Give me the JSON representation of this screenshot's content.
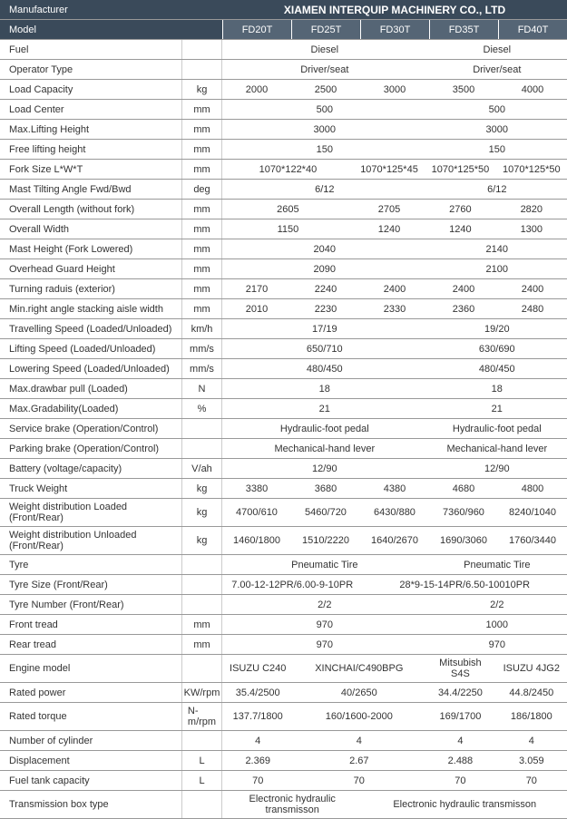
{
  "header": {
    "manufacturer_label": "Manufacturer",
    "manufacturer_value": "XIAMEN INTERQUIP MACHINERY CO., LTD",
    "model_label": "Model",
    "models": [
      "FD20T",
      "FD25T",
      "FD30T",
      "FD35T",
      "FD40T"
    ]
  },
  "rows": [
    {
      "label": "Fuel",
      "unit": "",
      "cells": [
        {
          "span": 3,
          "v": "Diesel"
        },
        {
          "span": 2,
          "v": "Diesel"
        }
      ]
    },
    {
      "label": "Operator Type",
      "unit": "",
      "cells": [
        {
          "span": 3,
          "v": "Driver/seat"
        },
        {
          "span": 2,
          "v": "Driver/seat"
        }
      ]
    },
    {
      "label": "Load Capacity",
      "unit": "kg",
      "cells": [
        {
          "span": 1,
          "v": "2000"
        },
        {
          "span": 1,
          "v": "2500"
        },
        {
          "span": 1,
          "v": "3000"
        },
        {
          "span": 1,
          "v": "3500"
        },
        {
          "span": 1,
          "v": "4000"
        }
      ]
    },
    {
      "label": "Load Center",
      "unit": "mm",
      "cells": [
        {
          "span": 3,
          "v": "500"
        },
        {
          "span": 2,
          "v": "500"
        }
      ]
    },
    {
      "label": "Max.Lifting Height",
      "unit": "mm",
      "cells": [
        {
          "span": 3,
          "v": "3000"
        },
        {
          "span": 2,
          "v": "3000"
        }
      ]
    },
    {
      "label": "Free lifting height",
      "unit": "mm",
      "cells": [
        {
          "span": 3,
          "v": "150"
        },
        {
          "span": 2,
          "v": "150"
        }
      ]
    },
    {
      "label": "Fork Size  L*W*T",
      "unit": "mm",
      "cells": [
        {
          "span": 2,
          "v": "1070*122*40"
        },
        {
          "span": 1,
          "v": "1070*125*45"
        },
        {
          "span": 1,
          "v": "1070*125*50"
        },
        {
          "span": 1,
          "v": "1070*125*50"
        }
      ]
    },
    {
      "label": "Mast Tilting Angle  Fwd/Bwd",
      "unit": "deg",
      "cells": [
        {
          "span": 3,
          "v": "6/12"
        },
        {
          "span": 2,
          "v": "6/12"
        }
      ]
    },
    {
      "label": "Overall Length (without fork)",
      "unit": "mm",
      "cells": [
        {
          "span": 2,
          "v": "2605"
        },
        {
          "span": 1,
          "v": "2705"
        },
        {
          "span": 1,
          "v": "2760"
        },
        {
          "span": 1,
          "v": "2820"
        }
      ]
    },
    {
      "label": "Overall Width",
      "unit": "mm",
      "cells": [
        {
          "span": 2,
          "v": "1150"
        },
        {
          "span": 1,
          "v": "1240"
        },
        {
          "span": 1,
          "v": "1240"
        },
        {
          "span": 1,
          "v": "1300"
        }
      ]
    },
    {
      "label": "Mast Height (Fork Lowered)",
      "unit": "mm",
      "cells": [
        {
          "span": 3,
          "v": "2040"
        },
        {
          "span": 2,
          "v": "2140"
        }
      ]
    },
    {
      "label": "Overhead Guard Height",
      "unit": "mm",
      "cells": [
        {
          "span": 3,
          "v": "2090"
        },
        {
          "span": 2,
          "v": "2100"
        }
      ]
    },
    {
      "label": "Turning raduis (exterior)",
      "unit": "mm",
      "cells": [
        {
          "span": 1,
          "v": "2170"
        },
        {
          "span": 1,
          "v": "2240"
        },
        {
          "span": 1,
          "v": "2400"
        },
        {
          "span": 1,
          "v": "2400"
        },
        {
          "span": 1,
          "v": "2400"
        }
      ]
    },
    {
      "label": "Min.right angle stacking aisle width",
      "unit": "mm",
      "cells": [
        {
          "span": 1,
          "v": "2010"
        },
        {
          "span": 1,
          "v": "2230"
        },
        {
          "span": 1,
          "v": "2330"
        },
        {
          "span": 1,
          "v": "2360"
        },
        {
          "span": 1,
          "v": "2480"
        }
      ]
    },
    {
      "label": "Travelling Speed (Loaded/Unloaded)",
      "unit": "km/h",
      "cells": [
        {
          "span": 3,
          "v": "17/19"
        },
        {
          "span": 2,
          "v": "19/20"
        }
      ]
    },
    {
      "label": "Lifting Speed (Loaded/Unloaded)",
      "unit": "mm/s",
      "cells": [
        {
          "span": 3,
          "v": "650/710"
        },
        {
          "span": 2,
          "v": "630/690"
        }
      ]
    },
    {
      "label": "Lowering Speed (Loaded/Unloaded)",
      "unit": "mm/s",
      "cells": [
        {
          "span": 3,
          "v": "480/450"
        },
        {
          "span": 2,
          "v": "480/450"
        }
      ]
    },
    {
      "label": "Max.drawbar pull (Loaded)",
      "unit": "N",
      "cells": [
        {
          "span": 3,
          "v": "18"
        },
        {
          "span": 2,
          "v": "18"
        }
      ]
    },
    {
      "label": "Max.Gradability(Loaded)",
      "unit": "%",
      "cells": [
        {
          "span": 3,
          "v": "21"
        },
        {
          "span": 2,
          "v": "21"
        }
      ]
    },
    {
      "label": "Service brake (Operation/Control)",
      "unit": "",
      "cells": [
        {
          "span": 3,
          "v": "Hydraulic-foot pedal"
        },
        {
          "span": 2,
          "v": "Hydraulic-foot pedal"
        }
      ]
    },
    {
      "label": "Parking brake (Operation/Control)",
      "unit": "",
      "cells": [
        {
          "span": 3,
          "v": "Mechanical-hand lever"
        },
        {
          "span": 2,
          "v": "Mechanical-hand lever"
        }
      ]
    },
    {
      "label": "Battery (voltage/capacity)",
      "unit": "V/ah",
      "cells": [
        {
          "span": 3,
          "v": "12/90"
        },
        {
          "span": 2,
          "v": "12/90"
        }
      ]
    },
    {
      "label": "Truck Weight",
      "unit": "kg",
      "cells": [
        {
          "span": 1,
          "v": "3380"
        },
        {
          "span": 1,
          "v": "3680"
        },
        {
          "span": 1,
          "v": "4380"
        },
        {
          "span": 1,
          "v": "4680"
        },
        {
          "span": 1,
          "v": "4800"
        }
      ]
    },
    {
      "label": "Weight distribution Loaded (Front/Rear)",
      "unit": "kg",
      "cells": [
        {
          "span": 1,
          "v": "4700/610"
        },
        {
          "span": 1,
          "v": "5460/720"
        },
        {
          "span": 1,
          "v": "6430/880"
        },
        {
          "span": 1,
          "v": "7360/960"
        },
        {
          "span": 1,
          "v": "8240/1040"
        }
      ]
    },
    {
      "label": "Weight distribution Unloaded (Front/Rear)",
      "unit": "kg",
      "cells": [
        {
          "span": 1,
          "v": "1460/1800"
        },
        {
          "span": 1,
          "v": "1510/2220"
        },
        {
          "span": 1,
          "v": "1640/2670"
        },
        {
          "span": 1,
          "v": "1690/3060"
        },
        {
          "span": 1,
          "v": "1760/3440"
        }
      ]
    },
    {
      "label": "Tyre",
      "unit": "",
      "cells": [
        {
          "span": 3,
          "v": "Pneumatic Tire"
        },
        {
          "span": 2,
          "v": "Pneumatic Tire"
        }
      ]
    },
    {
      "label": "Tyre Size  (Front/Rear)",
      "unit": "",
      "cells": [
        {
          "span": 2,
          "v": "7.00-12-12PR/6.00-9-10PR"
        },
        {
          "span": 3,
          "v": "28*9-15-14PR/6.50-10010PR"
        }
      ]
    },
    {
      "label": "Tyre Number  (Front/Rear)",
      "unit": "",
      "cells": [
        {
          "span": 3,
          "v": "2/2"
        },
        {
          "span": 2,
          "v": "2/2"
        }
      ]
    },
    {
      "label": "Front tread",
      "unit": "mm",
      "cells": [
        {
          "span": 3,
          "v": "970"
        },
        {
          "span": 2,
          "v": "1000"
        }
      ]
    },
    {
      "label": "Rear tread",
      "unit": "mm",
      "cells": [
        {
          "span": 3,
          "v": "970"
        },
        {
          "span": 2,
          "v": "970"
        }
      ]
    },
    {
      "label": "Engine model",
      "unit": "",
      "cells": [
        {
          "span": 1,
          "v": "ISUZU C240"
        },
        {
          "span": 2,
          "v": "XINCHAI/C490BPG"
        },
        {
          "span": 1,
          "v": "Mitsubish S4S"
        },
        {
          "span": 1,
          "v": "ISUZU 4JG2"
        }
      ]
    },
    {
      "label": "Rated power",
      "unit": "KW/rpm",
      "cells": [
        {
          "span": 1,
          "v": "35.4/2500"
        },
        {
          "span": 2,
          "v": "40/2650"
        },
        {
          "span": 1,
          "v": "34.4/2250"
        },
        {
          "span": 1,
          "v": "44.8/2450"
        }
      ]
    },
    {
      "label": "Rated torque",
      "unit": "N-m/rpm",
      "cells": [
        {
          "span": 1,
          "v": "137.7/1800"
        },
        {
          "span": 2,
          "v": "160/1600-2000"
        },
        {
          "span": 1,
          "v": "169/1700"
        },
        {
          "span": 1,
          "v": "186/1800"
        }
      ]
    },
    {
      "label": "Number of cylinder",
      "unit": "",
      "cells": [
        {
          "span": 1,
          "v": "4"
        },
        {
          "span": 2,
          "v": "4"
        },
        {
          "span": 1,
          "v": "4"
        },
        {
          "span": 1,
          "v": "4"
        }
      ]
    },
    {
      "label": "Displacement",
      "unit": "L",
      "cells": [
        {
          "span": 1,
          "v": "2.369"
        },
        {
          "span": 2,
          "v": "2.67"
        },
        {
          "span": 1,
          "v": "2.488"
        },
        {
          "span": 1,
          "v": "3.059"
        }
      ]
    },
    {
      "label": "Fuel tank capacity",
      "unit": "L",
      "cells": [
        {
          "span": 1,
          "v": "70"
        },
        {
          "span": 2,
          "v": "70"
        },
        {
          "span": 1,
          "v": "70"
        },
        {
          "span": 1,
          "v": "70"
        }
      ]
    },
    {
      "label": "Transmission box type",
      "unit": "",
      "cells": [
        {
          "span": 2,
          "v": "Electronic hydraulic transmisson"
        },
        {
          "span": 3,
          "v": "Electronic hydraulic transmisson"
        }
      ]
    }
  ]
}
